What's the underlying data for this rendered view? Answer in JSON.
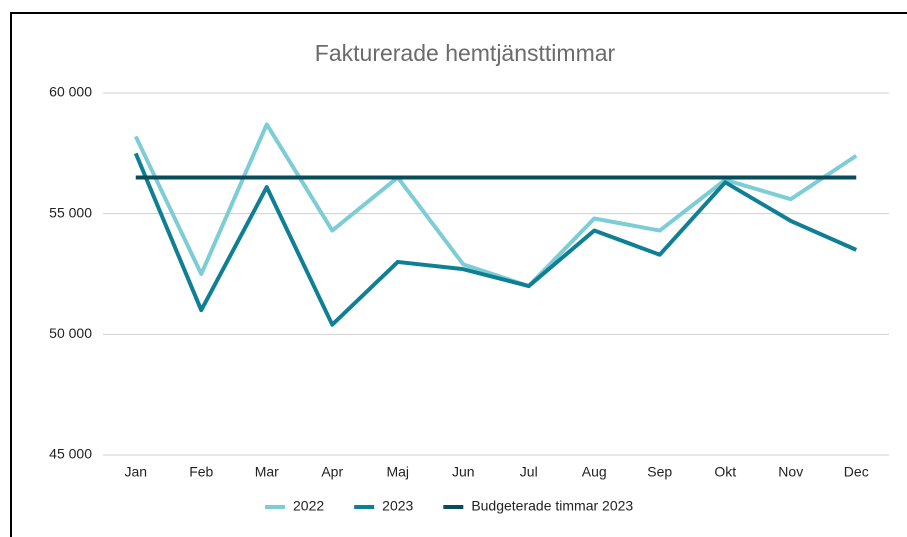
{
  "chart_data": {
    "type": "line",
    "title": "Fakturerade hemtjänsttimmar",
    "categories": [
      "Jan",
      "Feb",
      "Mar",
      "Apr",
      "Maj",
      "Jun",
      "Jul",
      "Aug",
      "Sep",
      "Okt",
      "Nov",
      "Dec"
    ],
    "series": [
      {
        "name": "2022",
        "color": "#7ccdd6",
        "values": [
          58200,
          52500,
          58700,
          54300,
          56500,
          52900,
          52000,
          54800,
          54300,
          56400,
          55600,
          57400
        ]
      },
      {
        "name": "2023",
        "color": "#0f7f96",
        "values": [
          57500,
          51000,
          56100,
          50400,
          53000,
          52700,
          52000,
          54300,
          53300,
          56300,
          54700,
          53500
        ]
      },
      {
        "name": "Budgeterade timmar 2023",
        "color": "#0a4d5a",
        "values": [
          56500,
          56500,
          56500,
          56500,
          56500,
          56500,
          56500,
          56500,
          56500,
          56500,
          56500,
          56500
        ]
      }
    ],
    "ylim": [
      45000,
      60000
    ],
    "yticks": [
      {
        "value": 45000,
        "label": "45 000"
      },
      {
        "value": 50000,
        "label": "50 000"
      },
      {
        "value": 55000,
        "label": "55 000"
      },
      {
        "value": 60000,
        "label": "60 000"
      }
    ],
    "grid": true,
    "legend": "bottom"
  }
}
